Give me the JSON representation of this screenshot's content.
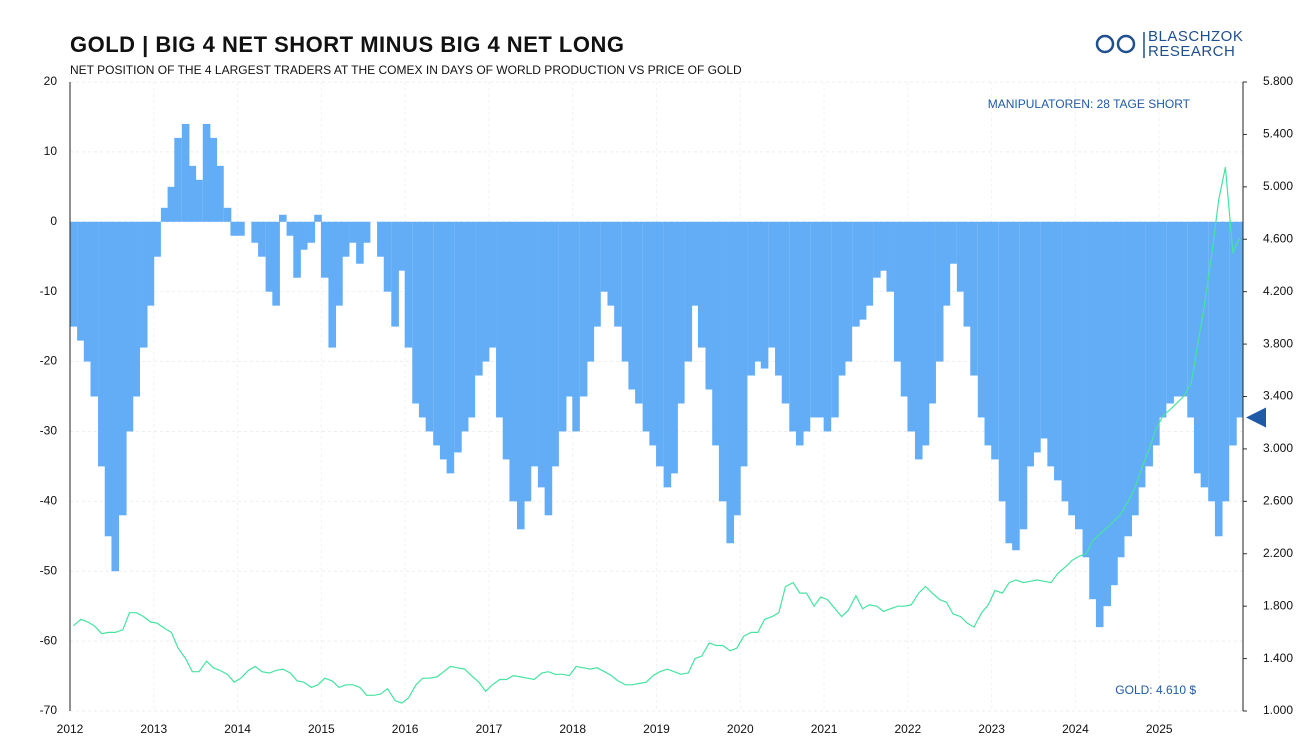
{
  "chart_data": {
    "type": "bar",
    "title": "GOLD | BIG 4 NET SHORT MINUS BIG 4 NET LONG",
    "subtitle": "NET POSITION OF THE 4 LARGEST TRADERS AT THE COMEX IN DAYS OF WORLD PRODUCTION VS PRICE OF GOLD",
    "logo": [
      "BLASCHZOK",
      "RESEARCH"
    ],
    "annotations": [
      "MANIPULATOREN: 28 TAGE SHORT",
      "GOLD: 4.610 $"
    ],
    "grid": true,
    "xlim": [
      2012,
      2026
    ],
    "xticks": [
      2012,
      2013,
      2014,
      2015,
      2016,
      2017,
      2018,
      2019,
      2020,
      2021,
      2022,
      2023,
      2024,
      2025
    ],
    "ylim": [
      -70,
      20
    ],
    "yticks": [
      -70,
      -60,
      -50,
      -40,
      -30,
      -20,
      -10,
      0,
      10,
      20
    ],
    "y2lim": [
      1000,
      5800
    ],
    "y2ticks": [
      {
        "value": 1000,
        "label": "1.000"
      },
      {
        "value": 1400,
        "label": "1.400"
      },
      {
        "value": 1800,
        "label": "1.800"
      },
      {
        "value": 2200,
        "label": "2.200"
      },
      {
        "value": 2600,
        "label": "2.600"
      },
      {
        "value": 3000,
        "label": "3.000"
      },
      {
        "value": 3400,
        "label": "3.400"
      },
      {
        "value": 3800,
        "label": "3.800"
      },
      {
        "value": 4200,
        "label": "4.200"
      },
      {
        "value": 4600,
        "label": "4.600"
      },
      {
        "value": 5000,
        "label": "5.000"
      },
      {
        "value": 5400,
        "label": "5.400"
      },
      {
        "value": 5800,
        "label": "5.800"
      }
    ],
    "x": [
      2012.04,
      2012.13,
      2012.21,
      2012.29,
      2012.38,
      2012.46,
      2012.54,
      2012.63,
      2012.71,
      2012.79,
      2012.88,
      2012.96,
      2013.04,
      2013.13,
      2013.21,
      2013.29,
      2013.38,
      2013.46,
      2013.54,
      2013.63,
      2013.71,
      2013.79,
      2013.88,
      2013.96,
      2014.04,
      2014.13,
      2014.21,
      2014.29,
      2014.38,
      2014.46,
      2014.54,
      2014.63,
      2014.71,
      2014.79,
      2014.88,
      2014.96,
      2015.04,
      2015.13,
      2015.21,
      2015.29,
      2015.38,
      2015.46,
      2015.54,
      2015.63,
      2015.71,
      2015.79,
      2015.88,
      2015.96,
      2016.04,
      2016.13,
      2016.21,
      2016.29,
      2016.38,
      2016.46,
      2016.54,
      2016.63,
      2016.71,
      2016.79,
      2016.88,
      2016.96,
      2017.04,
      2017.13,
      2017.21,
      2017.29,
      2017.38,
      2017.46,
      2017.54,
      2017.63,
      2017.71,
      2017.79,
      2017.88,
      2017.96,
      2018.04,
      2018.13,
      2018.21,
      2018.29,
      2018.38,
      2018.46,
      2018.54,
      2018.63,
      2018.71,
      2018.79,
      2018.88,
      2018.96,
      2019.04,
      2019.13,
      2019.21,
      2019.29,
      2019.38,
      2019.46,
      2019.54,
      2019.63,
      2019.71,
      2019.79,
      2019.88,
      2019.96,
      2020.04,
      2020.13,
      2020.21,
      2020.29,
      2020.38,
      2020.46,
      2020.54,
      2020.63,
      2020.71,
      2020.79,
      2020.88,
      2020.96,
      2021.04,
      2021.13,
      2021.21,
      2021.29,
      2021.38,
      2021.46,
      2021.54,
      2021.63,
      2021.71,
      2021.79,
      2021.88,
      2021.96,
      2022.04,
      2022.13,
      2022.21,
      2022.29,
      2022.38,
      2022.46,
      2022.54,
      2022.63,
      2022.71,
      2022.79,
      2022.88,
      2022.96,
      2023.04,
      2023.13,
      2023.21,
      2023.29,
      2023.38,
      2023.46,
      2023.54,
      2023.63,
      2023.71,
      2023.79,
      2023.88,
      2023.96,
      2024.04,
      2024.13,
      2024.21,
      2024.29,
      2024.38,
      2024.46,
      2024.54,
      2024.63,
      2024.71,
      2024.79,
      2024.88,
      2024.96,
      2025.04,
      2025.13,
      2025.21,
      2025.29,
      2025.38,
      2025.46,
      2025.54,
      2025.63,
      2025.71,
      2025.79,
      2025.88,
      2025.96
    ],
    "series": [
      {
        "color": "#63adf7",
        "values": [
          -15,
          -17,
          -20,
          -25,
          -35,
          -45,
          -50,
          -42,
          -30,
          -25,
          -18,
          -12,
          -5,
          2,
          5,
          12,
          14,
          8,
          6,
          14,
          12,
          8,
          2,
          -2,
          -2,
          0,
          -3,
          -5,
          -10,
          -12,
          1,
          -2,
          -8,
          -4,
          -3,
          1,
          -8,
          -18,
          -12,
          -5,
          -3,
          -6,
          -3,
          0,
          -5,
          -10,
          -15,
          -7,
          -18,
          -26,
          -28,
          -30,
          -32,
          -34,
          -36,
          -33,
          -30,
          -28,
          -22,
          -20,
          -18,
          -28,
          -34,
          -40,
          -44,
          -40,
          -35,
          -38,
          -42,
          -35,
          -30,
          -25,
          -30,
          -25,
          -20,
          -15,
          -10,
          -12,
          -15,
          -20,
          -24,
          -26,
          -30,
          -32,
          -35,
          -38,
          -36,
          -26,
          -20,
          -12,
          -18,
          -24,
          -32,
          -40,
          -46,
          -42,
          -35,
          -22,
          -20,
          -21,
          -18,
          -22,
          -26,
          -30,
          -32,
          -30,
          -28,
          -28,
          -30,
          -28,
          -22,
          -20,
          -15,
          -14,
          -12,
          -8,
          -7,
          -10,
          -20,
          -25,
          -30,
          -34,
          -32,
          -26,
          -20,
          -12,
          -6,
          -10,
          -15,
          -22,
          -28,
          -32,
          -34,
          -40,
          -46,
          -47,
          -44,
          -35,
          -33,
          -31,
          -35,
          -37,
          -40,
          -42,
          -44,
          -48,
          -54,
          -58,
          -55,
          -52,
          -48,
          -45,
          -42,
          -38,
          -35,
          -32,
          -28,
          -26,
          -25,
          -25,
          -28,
          -36,
          -38,
          -40,
          -45,
          -40,
          -32,
          -28
        ]
      },
      {
        "color": "#45e3a0",
        "axis": "y2",
        "values": [
          1650,
          1700,
          1680,
          1650,
          1590,
          1600,
          1600,
          1620,
          1750,
          1750,
          1720,
          1680,
          1670,
          1630,
          1600,
          1480,
          1400,
          1300,
          1300,
          1380,
          1330,
          1310,
          1280,
          1220,
          1250,
          1310,
          1340,
          1300,
          1290,
          1310,
          1320,
          1290,
          1230,
          1220,
          1180,
          1200,
          1250,
          1230,
          1180,
          1200,
          1200,
          1180,
          1120,
          1120,
          1130,
          1170,
          1080,
          1060,
          1100,
          1200,
          1250,
          1250,
          1260,
          1300,
          1340,
          1330,
          1320,
          1270,
          1220,
          1150,
          1200,
          1240,
          1240,
          1270,
          1260,
          1250,
          1240,
          1290,
          1300,
          1280,
          1280,
          1270,
          1340,
          1330,
          1320,
          1330,
          1300,
          1270,
          1230,
          1200,
          1200,
          1210,
          1220,
          1270,
          1300,
          1320,
          1300,
          1280,
          1290,
          1400,
          1420,
          1520,
          1500,
          1500,
          1460,
          1480,
          1570,
          1600,
          1600,
          1700,
          1720,
          1750,
          1950,
          1980,
          1900,
          1900,
          1800,
          1870,
          1850,
          1780,
          1720,
          1770,
          1880,
          1780,
          1810,
          1800,
          1760,
          1780,
          1800,
          1800,
          1810,
          1900,
          1950,
          1900,
          1850,
          1830,
          1740,
          1720,
          1670,
          1640,
          1750,
          1810,
          1920,
          1900,
          1980,
          2000,
          1980,
          1990,
          2000,
          1990,
          1980,
          2050,
          2100,
          2150,
          2180,
          2200,
          2300,
          2350,
          2400,
          2450,
          2500,
          2600,
          2700,
          2850,
          3000,
          3150,
          3250,
          3300,
          3350,
          3400,
          3500,
          3800,
          4100,
          4500,
          4900,
          5150,
          4500,
          4610
        ]
      }
    ]
  }
}
